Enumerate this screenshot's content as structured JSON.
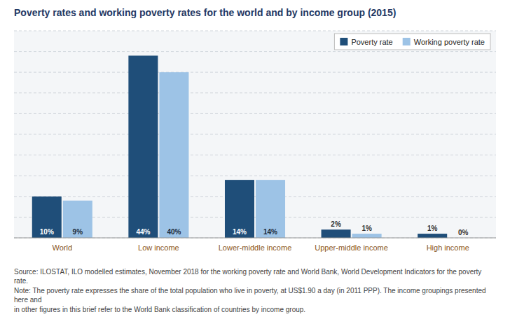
{
  "chart_data": {
    "type": "bar",
    "title": "Poverty rates and working poverty rates for the world and by income group (2015)",
    "categories": [
      "World",
      "Low income",
      "Lower-middle income",
      "Upper-middle income",
      "High income"
    ],
    "series": [
      {
        "name": "Poverty rate",
        "color": "#1F4E79",
        "values": [
          10,
          44,
          14,
          2,
          1
        ],
        "value_labels": [
          "10%",
          "44%",
          "14%",
          "2%",
          "1%"
        ]
      },
      {
        "name": "Working poverty rate",
        "color": "#9DC3E6",
        "values": [
          9,
          40,
          14,
          1,
          0
        ],
        "value_labels": [
          "9%",
          "40%",
          "14%",
          "1%",
          "0%"
        ]
      }
    ],
    "ylim": [
      0,
      50
    ],
    "yticks": [
      0,
      5,
      10,
      15,
      20,
      25,
      30,
      35,
      40,
      45,
      50
    ],
    "grid": true,
    "legend": "upper right",
    "data_labels": true,
    "tick_labels": "x",
    "annotations": [
      "Source: ILOSTAT, ILO modelled estimates, November 2018 for the working poverty rate and World Bank, World Development Indicators for the poverty rate.",
      "Note: The poverty rate expresses the share of the total population who live in poverty, at US$1.90 a day (in 2011 PPP). The income groupings presented here and",
      "in other figures in this brief refer to the World Bank classification of countries by income group."
    ]
  }
}
